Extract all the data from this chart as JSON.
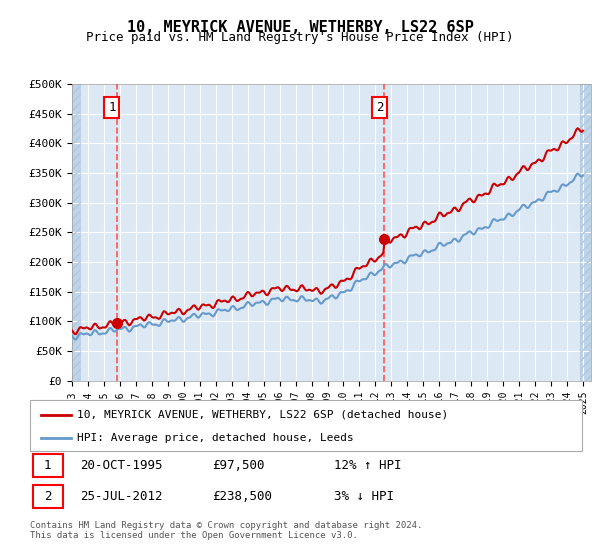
{
  "title": "10, MEYRICK AVENUE, WETHERBY, LS22 6SP",
  "subtitle": "Price paid vs. HM Land Registry's House Price Index (HPI)",
  "legend_line1": "10, MEYRICK AVENUE, WETHERBY, LS22 6SP (detached house)",
  "legend_line2": "HPI: Average price, detached house, Leeds",
  "table_rows": [
    {
      "num": "1",
      "date": "20-OCT-1995",
      "price": "£97,500",
      "hpi": "12% ↑ HPI"
    },
    {
      "num": "2",
      "date": "25-JUL-2012",
      "price": "£238,500",
      "hpi": "3% ↓ HPI"
    }
  ],
  "footnote": "Contains HM Land Registry data © Crown copyright and database right 2024.\nThis data is licensed under the Open Government Licence v3.0.",
  "sale1_x": 1995.8,
  "sale1_y": 97500,
  "sale2_x": 2012.55,
  "sale2_y": 238500,
  "ylim": [
    0,
    500000
  ],
  "xlim_start": 1993,
  "xlim_end": 2025.5,
  "yticks": [
    0,
    50000,
    100000,
    150000,
    200000,
    250000,
    300000,
    350000,
    400000,
    450000,
    500000
  ],
  "ytick_labels": [
    "£0",
    "£50K",
    "£100K",
    "£150K",
    "£200K",
    "£250K",
    "£300K",
    "£350K",
    "£400K",
    "£450K",
    "£500K"
  ],
  "xticks": [
    1993,
    1994,
    1995,
    1996,
    1997,
    1998,
    1999,
    2000,
    2001,
    2002,
    2003,
    2004,
    2005,
    2006,
    2007,
    2008,
    2009,
    2010,
    2011,
    2012,
    2013,
    2014,
    2015,
    2016,
    2017,
    2018,
    2019,
    2020,
    2021,
    2022,
    2023,
    2024,
    2025
  ],
  "bg_color": "#dce9f5",
  "hatch_color": "#c0d4e8",
  "grid_color": "#ffffff",
  "line_red": "#cc0000",
  "line_blue": "#6699cc",
  "sale_dot_color": "#cc0000",
  "vline_color": "#ff4444"
}
